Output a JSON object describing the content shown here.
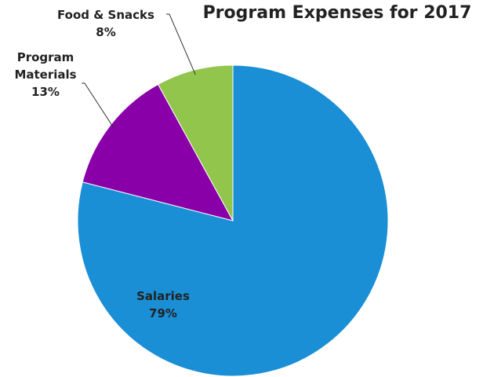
{
  "chart_data": {
    "type": "pie",
    "title": "Program Expenses for 2017",
    "categories": [
      "Salaries",
      "Program Materials",
      "Food & Snacks"
    ],
    "values": [
      79,
      13,
      8
    ],
    "value_labels": [
      "79%",
      "13%",
      "8%"
    ],
    "colors": [
      "#1a8fd6",
      "#8a00a8",
      "#92c54b"
    ]
  }
}
